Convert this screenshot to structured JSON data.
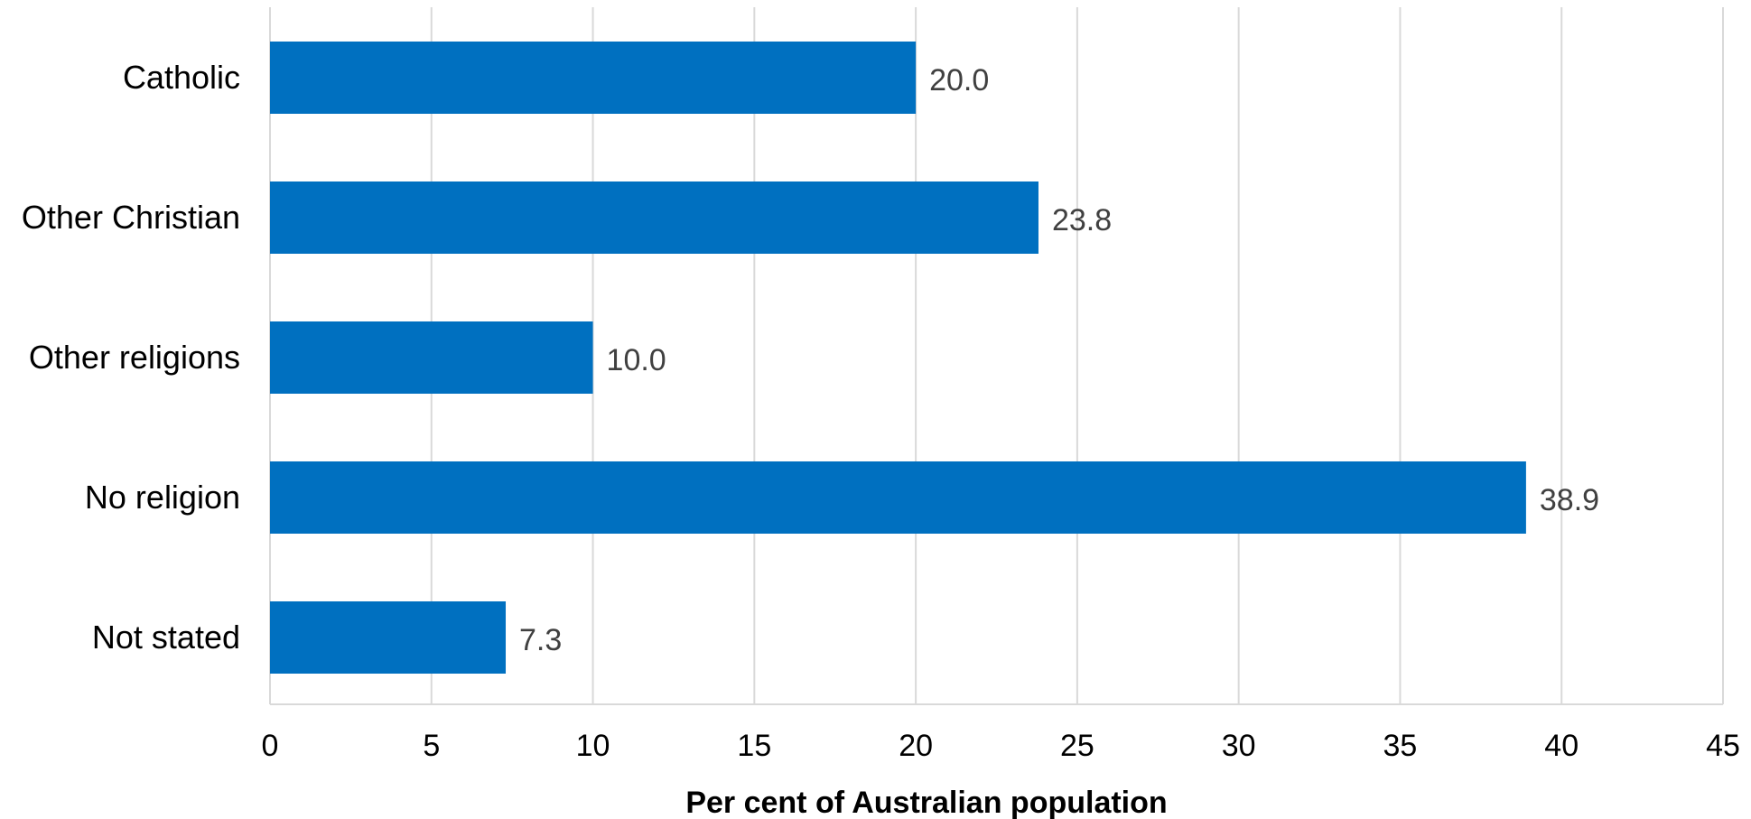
{
  "chart_data": {
    "type": "bar",
    "orientation": "horizontal",
    "categories": [
      "Catholic",
      "Other Christian",
      "Other religions",
      "No religion",
      "Not stated"
    ],
    "values": [
      20.0,
      23.8,
      10.0,
      38.9,
      7.3
    ],
    "value_labels": [
      "20.0",
      "23.8",
      "10.0",
      "38.9",
      "7.3"
    ],
    "xlabel": "Per cent of Australian population",
    "xlim": [
      0,
      45
    ],
    "x_ticks": [
      0,
      5,
      10,
      15,
      20,
      25,
      30,
      35,
      40,
      45
    ],
    "grid": "vertical",
    "legend": "none",
    "colors": {
      "bar": "#0070C0",
      "gridline": "#D9D9D9",
      "data_label": "#404040"
    }
  }
}
